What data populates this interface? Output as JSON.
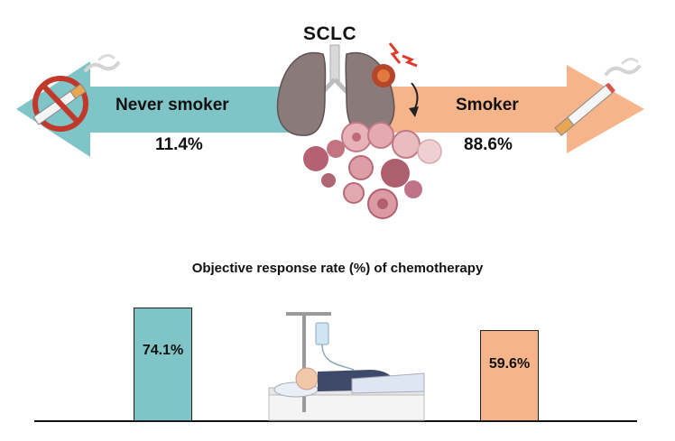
{
  "diagram": {
    "title": "SCLC",
    "left_arrow": {
      "label": "Never smoker",
      "percent": "11.4%",
      "color": "#7fc4c6"
    },
    "right_arrow": {
      "label": "Smoker",
      "percent": "88.6%",
      "color": "#f6b48a"
    },
    "icons": [
      "no-smoking-icon",
      "cigarette-icon",
      "lungs-icon",
      "tumor-cells-icon",
      "patient-iv-icon"
    ]
  },
  "chart_data": {
    "type": "bar",
    "title": "Objective response rate (%) of chemotherapy",
    "categories": [
      "",
      ""
    ],
    "values": [
      74.1,
      59.6
    ],
    "value_labels": [
      "74.1%",
      "59.6%"
    ],
    "colors": [
      "#7fc4c6",
      "#f6b48a"
    ],
    "ylim": [
      0,
      100
    ],
    "grid": false
  }
}
